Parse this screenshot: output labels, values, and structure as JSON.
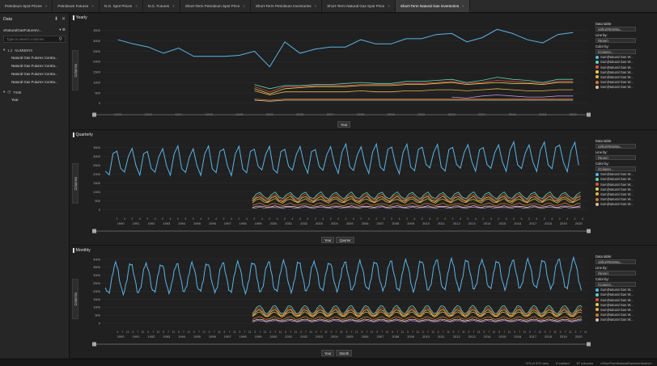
{
  "tabs": [
    {
      "label": "Petroleum Spot Prices"
    },
    {
      "label": "Petroleum Futures"
    },
    {
      "label": "N.G. Spot Prices"
    },
    {
      "label": "N.G. Futures"
    },
    {
      "label": "Short-Term Petroleum Spot Price"
    },
    {
      "label": "Short-Term Petroleum Inventories"
    },
    {
      "label": "Short-Term Natural Gas Spot Price"
    },
    {
      "label": "Short-Term Natural Gas Inventories"
    }
  ],
  "sidebar": {
    "title": "Data",
    "table_select": "vNaturalGasFuturesV...",
    "search_placeholder": "Type to search columns",
    "groups": [
      {
        "label": "NUMBERS",
        "items": [
          "Natural Gas Futures Contra...",
          "Natural Gas Futures Contra...",
          "Natural Gas Futures Contra...",
          "Natural Gas Futures Contra..."
        ]
      },
      {
        "label": "TIME",
        "items": [
          "Year"
        ]
      }
    ]
  },
  "colors": {
    "series": [
      "#5ab4e6",
      "#5ad6b0",
      "#e05050",
      "#e6d050",
      "#e6b450",
      "#d07830",
      "#d6c0a0",
      "#c090e0"
    ]
  },
  "panels": [
    {
      "title": "Yearly",
      "y_axis_label": "Columns",
      "x_controls": [
        "Year"
      ],
      "legend": {
        "data_table_label": "Data table:",
        "data_table_value": "vShortTermNa...",
        "line_by_label": "Line by:",
        "line_by_value": "(None)",
        "color_by_label": "Color by:",
        "color_by_value": "(Column...",
        "entries": [
          "Sum(Natural Gas W...",
          "Sum(Natural Gas W...",
          "Sum(Natural Gas W...",
          "Sum(Natural Gas W...",
          "Sum(Natural Gas W...",
          "Sum(Natural Gas W...",
          "Sum(Natural Gas W..."
        ]
      }
    },
    {
      "title": "Quarterly",
      "y_axis_label": "Columns",
      "x_controls": [
        "Year",
        "Quarter"
      ],
      "legend": {
        "data_table_label": "Data table:",
        "data_table_value": "vShortTermNa...",
        "line_by_label": "Line by:",
        "line_by_value": "(None)",
        "color_by_label": "Color by:",
        "color_by_value": "(Column...",
        "entries": [
          "Sum(Natural Gas W...",
          "Sum(Natural Gas W...",
          "Sum(Natural Gas W...",
          "Sum(Natural Gas W...",
          "Sum(Natural Gas W...",
          "Sum(Natural Gas W...",
          "Sum(Natural Gas W..."
        ]
      }
    },
    {
      "title": "Monthly",
      "y_axis_label": "Columns",
      "x_controls": [
        "Year",
        "Month"
      ],
      "legend": {
        "data_table_label": "Data table:",
        "data_table_value": "vShortTermNa...",
        "line_by_label": "Line by:",
        "line_by_value": "(None)",
        "color_by_label": "Color by:",
        "color_by_value": "(Column...",
        "entries": [
          "Sum(Natural Gas W...",
          "Sum(Natural Gas W...",
          "Sum(Natural Gas W...",
          "Sum(Natural Gas W...",
          "Sum(Natural Gas W...",
          "Sum(Natural Gas W...",
          "Sum(Natural Gas W..."
        ]
      }
    }
  ],
  "chart_data": [
    {
      "type": "line",
      "title": "Yearly",
      "xlim": [
        1989,
        2021
      ],
      "ylim": [
        -200,
        3600
      ],
      "x_ticks": [
        1990,
        1992,
        1994,
        1996,
        1998,
        2000,
        2002,
        2004,
        2006,
        2008,
        2010,
        2012,
        2014,
        2016,
        2018,
        2020
      ],
      "y_ticks": [
        0,
        500,
        1000,
        1500,
        2000,
        2500,
        3000,
        3500
      ],
      "series": [
        {
          "x": [
            1990,
            1991,
            1992,
            1993,
            1994,
            1995,
            1996,
            1997,
            1998,
            1999,
            2000,
            2001,
            2002,
            2003,
            2004,
            2005,
            2006,
            2007,
            2008,
            2009,
            2010,
            2011,
            2012,
            2013,
            2014,
            2015,
            2016,
            2017,
            2018,
            2019,
            2020
          ],
          "values": [
            3050,
            2850,
            2700,
            2400,
            2650,
            2250,
            2250,
            2250,
            2300,
            2500,
            1750,
            2950,
            2400,
            2600,
            2700,
            2700,
            3050,
            2850,
            2850,
            3100,
            3100,
            3300,
            3350,
            2950,
            3150,
            3550,
            3350,
            3050,
            2900,
            3300,
            3400
          ]
        },
        {
          "x": [
            1999,
            2000,
            2001,
            2002,
            2003,
            2004,
            2005,
            2006,
            2007,
            2008,
            2009,
            2010,
            2011,
            2012,
            2013,
            2014,
            2015,
            2016,
            2017,
            2018,
            2019,
            2020
          ],
          "values": [
            900,
            700,
            850,
            850,
            900,
            900,
            950,
            1000,
            950,
            950,
            1050,
            1050,
            1100,
            1150,
            1000,
            1100,
            1250,
            1150,
            1100,
            1000,
            1150,
            1150
          ]
        },
        {
          "x": [
            1999,
            2000,
            2001,
            2002,
            2003,
            2004,
            2005,
            2006,
            2007,
            2008,
            2009,
            2010,
            2011,
            2012,
            2013,
            2014,
            2015,
            2016,
            2017,
            2018,
            2019,
            2020
          ],
          "values": [
            800,
            550,
            800,
            800,
            850,
            850,
            850,
            900,
            900,
            900,
            950,
            950,
            1000,
            1050,
            950,
            1000,
            1100,
            1050,
            1000,
            950,
            1050,
            1050
          ]
        },
        {
          "x": [
            1999,
            2000,
            2001,
            2002,
            2003,
            2004,
            2005,
            2006,
            2007,
            2008,
            2009,
            2010,
            2011,
            2012,
            2013,
            2014,
            2015,
            2016,
            2017,
            2018,
            2019,
            2020
          ],
          "values": [
            700,
            450,
            700,
            750,
            800,
            800,
            800,
            850,
            850,
            850,
            900,
            900,
            950,
            1000,
            900,
            950,
            1000,
            950,
            950,
            900,
            1000,
            1000
          ]
        },
        {
          "x": [
            1999,
            2000,
            2001,
            2002,
            2003,
            2004,
            2005,
            2006,
            2007,
            2008,
            2009,
            2010,
            2011,
            2012,
            2013,
            2014,
            2015,
            2016,
            2017,
            2018,
            2019,
            2020
          ],
          "values": [
            600,
            400,
            550,
            550,
            550,
            550,
            550,
            600,
            550,
            550,
            600,
            600,
            650,
            650,
            600,
            650,
            700,
            650,
            600,
            600,
            650,
            650
          ]
        },
        {
          "x": [
            1999,
            2000,
            2001,
            2002,
            2003,
            2004,
            2005,
            2006,
            2007,
            2008,
            2009,
            2010,
            2011,
            2012,
            2013,
            2014,
            2015,
            2016,
            2017,
            2018,
            2019,
            2020
          ],
          "values": [
            200,
            150,
            200,
            200,
            200,
            200,
            200,
            200,
            200,
            200,
            200,
            200,
            200,
            200,
            200,
            200,
            200,
            200,
            200,
            200,
            200,
            200
          ]
        },
        {
          "x": [
            1999,
            2000,
            2001,
            2002,
            2003,
            2004,
            2005,
            2006,
            2007,
            2008,
            2009,
            2010,
            2011,
            2012,
            2013,
            2014,
            2015,
            2016,
            2017,
            2018,
            2019,
            2020
          ],
          "values": [
            150,
            100,
            150,
            150,
            150,
            150,
            150,
            150,
            150,
            150,
            150,
            150,
            150,
            150,
            150,
            150,
            150,
            150,
            150,
            150,
            150,
            150
          ]
        },
        {
          "x": [
            2012,
            2013,
            2014,
            2015,
            2016,
            2017,
            2018,
            2019,
            2020
          ],
          "values": [
            300,
            250,
            350,
            400,
            350,
            300,
            300,
            350,
            350
          ]
        }
      ]
    },
    {
      "type": "line",
      "title": "Quarterly",
      "xlim": [
        1989.2,
        2021
      ],
      "ylim": [
        -200,
        3800
      ],
      "x_ticks": [
        1990,
        1991,
        1992,
        1993,
        1994,
        1995,
        1996,
        1997,
        1998,
        1999,
        2000,
        2001,
        2002,
        2003,
        2004,
        2005,
        2006,
        2007,
        2008,
        2009,
        2010,
        2011,
        2012,
        2013,
        2014,
        2015,
        2016,
        2017,
        2018,
        2019,
        2020
      ],
      "y_ticks": [
        0,
        500,
        1000,
        1500,
        2000,
        2500,
        3000,
        3500
      ],
      "period": "quarter",
      "main_start": 1989.375,
      "main_mean": 2700,
      "main_amp": 800,
      "sub_start": 1999.0,
      "sub_series": [
        {
          "mean": 800,
          "amp": 200
        },
        {
          "mean": 700,
          "amp": 180
        },
        {
          "mean": 600,
          "amp": 160
        },
        {
          "mean": 500,
          "amp": 120
        },
        {
          "mean": 300,
          "amp": 70
        },
        {
          "mean": 180,
          "amp": 40
        },
        {
          "mean": 120,
          "amp": 30
        }
      ]
    },
    {
      "type": "line",
      "title": "Monthly",
      "xlim": [
        1989.2,
        2021
      ],
      "ylim": [
        -200,
        4200
      ],
      "x_ticks": [
        1990,
        1991,
        1992,
        1993,
        1994,
        1995,
        1996,
        1997,
        1998,
        1999,
        2000,
        2001,
        2002,
        2003,
        2004,
        2005,
        2006,
        2007,
        2008,
        2009,
        2010,
        2011,
        2012,
        2013,
        2014,
        2015,
        2016,
        2017,
        2018,
        2019,
        2020
      ],
      "y_ticks": [
        0,
        500,
        1000,
        1500,
        2000,
        2500,
        3000,
        3500,
        4000
      ],
      "period": "month",
      "main_start": 1989.375,
      "main_mean": 2800,
      "main_amp": 900,
      "sub_start": 1999.0,
      "sub_series": [
        {
          "mean": 850,
          "amp": 250
        },
        {
          "mean": 750,
          "amp": 220
        },
        {
          "mean": 650,
          "amp": 190
        },
        {
          "mean": 550,
          "amp": 150
        },
        {
          "mean": 320,
          "amp": 80
        },
        {
          "mean": 200,
          "amp": 50
        },
        {
          "mean": 130,
          "amp": 35
        }
      ]
    }
  ],
  "status": {
    "rows": "373 of 373 rows",
    "marked": "0 marked",
    "columns": "57 columns",
    "table": "vShortTermNaturalGasInventoriesV..."
  }
}
